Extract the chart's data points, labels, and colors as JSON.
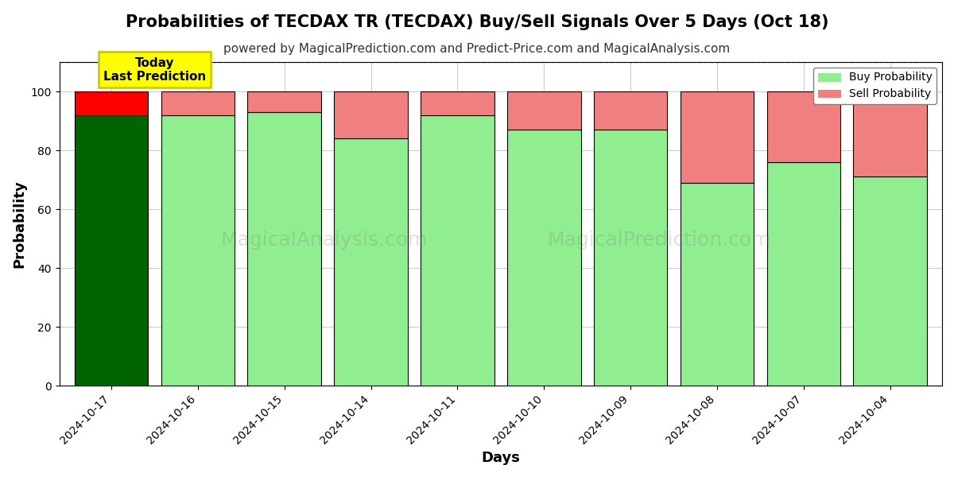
{
  "title": "Probabilities of TECDAX TR (TECDAX) Buy/Sell Signals Over 5 Days (Oct 18)",
  "subtitle": "powered by MagicalPrediction.com and Predict-Price.com and MagicalAnalysis.com",
  "xlabel": "Days",
  "ylabel": "Probability",
  "watermark1": "MagicalAnalysis.com",
  "watermark2": "MagicalPrediction.com",
  "dates": [
    "2024-10-17",
    "2024-10-16",
    "2024-10-15",
    "2024-10-14",
    "2024-10-11",
    "2024-10-10",
    "2024-10-09",
    "2024-10-08",
    "2024-10-07",
    "2024-10-04"
  ],
  "buy_probs": [
    92,
    92,
    93,
    84,
    92,
    87,
    87,
    69,
    76,
    71
  ],
  "sell_probs": [
    8,
    8,
    7,
    16,
    8,
    13,
    13,
    31,
    24,
    29
  ],
  "today_buy_color": "#006400",
  "today_sell_color": "#FF0000",
  "other_buy_color": "#90EE90",
  "other_sell_color": "#F08080",
  "bar_edgecolor": "#000000",
  "ylim": [
    0,
    110
  ],
  "yticks": [
    0,
    20,
    40,
    60,
    80,
    100
  ],
  "dashed_line_y": 110,
  "legend_buy_label": "Buy Probability",
  "legend_sell_label": "Sell Probability",
  "today_label_line1": "Today",
  "today_label_line2": "Last Prediction",
  "today_box_facecolor": "#FFFF00",
  "today_box_edgecolor": "#CCCC00",
  "background_color": "#ffffff",
  "grid_color": "#cccccc",
  "title_fontsize": 15,
  "subtitle_fontsize": 11,
  "axis_label_fontsize": 13,
  "tick_fontsize": 10,
  "legend_fontsize": 10
}
